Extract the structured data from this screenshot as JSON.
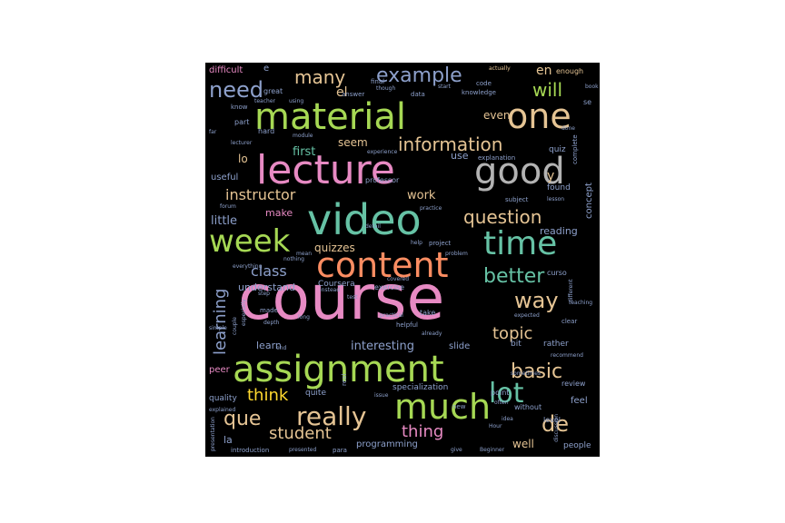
{
  "word_cloud": {
    "background": "#000000",
    "words": [
      {
        "text": "course",
        "color": "#e78ac3"
      },
      {
        "text": "video",
        "color": "#66c2a5"
      },
      {
        "text": "lecture",
        "color": "#e78ac3"
      },
      {
        "text": "material",
        "color": "#a6d854"
      },
      {
        "text": "assignment",
        "color": "#a6d854"
      },
      {
        "text": "content",
        "color": "#fc8d62"
      },
      {
        "text": "much",
        "color": "#a6d854"
      },
      {
        "text": "one",
        "color": "#e5c494"
      },
      {
        "text": "good",
        "color": "#b3b3b3"
      },
      {
        "text": "time",
        "color": "#66c2a5"
      },
      {
        "text": "week",
        "color": "#a6d854"
      },
      {
        "text": "really",
        "color": "#e5c494"
      },
      {
        "text": "information",
        "color": "#e5c494"
      },
      {
        "text": "lot",
        "color": "#66c2a5"
      },
      {
        "text": "example",
        "color": "#8da0cb"
      },
      {
        "text": "question",
        "color": "#e5c494"
      },
      {
        "text": "better",
        "color": "#66c2a5"
      },
      {
        "text": "basic",
        "color": "#e5c494"
      },
      {
        "text": "way",
        "color": "#e5c494"
      },
      {
        "text": "need",
        "color": "#8da0cb"
      },
      {
        "text": "many",
        "color": "#e5c494"
      },
      {
        "text": "will",
        "color": "#a6d854"
      },
      {
        "text": "instructor",
        "color": "#e5c494"
      },
      {
        "text": "que",
        "color": "#e5c494"
      },
      {
        "text": "de",
        "color": "#e5c494"
      },
      {
        "text": "think",
        "color": "#ffd92f"
      },
      {
        "text": "thing",
        "color": "#e78ac3"
      },
      {
        "text": "topic",
        "color": "#e5c494"
      },
      {
        "text": "class",
        "color": "#8da0cb"
      },
      {
        "text": "student",
        "color": "#e5c494"
      },
      {
        "text": "learning",
        "color": "#8da0cb"
      },
      {
        "text": "quizzes",
        "color": "#e5c494"
      },
      {
        "text": "interesting",
        "color": "#8da0cb"
      },
      {
        "text": "understand",
        "color": "#8da0cb"
      },
      {
        "text": "Coursera",
        "color": "#8da0cb"
      },
      {
        "text": "little",
        "color": "#8da0cb"
      },
      {
        "text": "make",
        "color": "#e78ac3"
      },
      {
        "text": "work",
        "color": "#e5c494"
      },
      {
        "text": "first",
        "color": "#66c2a5"
      },
      {
        "text": "seem",
        "color": "#e5c494"
      },
      {
        "text": "use",
        "color": "#8da0cb"
      },
      {
        "text": "learn",
        "color": "#8da0cb"
      },
      {
        "text": "programming",
        "color": "#8da0cb"
      },
      {
        "text": "well",
        "color": "#e5c494"
      },
      {
        "text": "reading",
        "color": "#8da0cb"
      },
      {
        "text": "concept",
        "color": "#8da0cb"
      },
      {
        "text": "el",
        "color": "#e5c494"
      },
      {
        "text": "en",
        "color": "#e5c494"
      },
      {
        "text": "even",
        "color": "#e5c494"
      },
      {
        "text": "lo",
        "color": "#e5c494"
      },
      {
        "text": "quiz",
        "color": "#8da0cb"
      },
      {
        "text": "slide",
        "color": "#8da0cb"
      },
      {
        "text": "specialization",
        "color": "#8da0cb"
      },
      {
        "text": "bit",
        "color": "#8da0cb"
      },
      {
        "text": "rather",
        "color": "#8da0cb"
      },
      {
        "text": "found",
        "color": "#8da0cb"
      },
      {
        "text": "professor",
        "color": "#8da0cb"
      },
      {
        "text": "useful",
        "color": "#8da0cb"
      },
      {
        "text": "feel",
        "color": "#8da0cb"
      },
      {
        "text": "people",
        "color": "#8da0cb"
      },
      {
        "text": "level",
        "color": "#8da0cb"
      },
      {
        "text": "review",
        "color": "#8da0cb"
      },
      {
        "text": "quality",
        "color": "#8da0cb"
      },
      {
        "text": "quite",
        "color": "#8da0cb"
      },
      {
        "text": "la",
        "color": "#8da0cb"
      },
      {
        "text": "peer",
        "color": "#e78ac3"
      },
      {
        "text": "difficult",
        "color": "#e78ac3"
      },
      {
        "text": "enough",
        "color": "#e5c494"
      },
      {
        "text": "code",
        "color": "#8da0cb"
      },
      {
        "text": "knowledge",
        "color": "#8da0cb"
      },
      {
        "text": "answer",
        "color": "#8da0cb"
      },
      {
        "text": "data",
        "color": "#8da0cb"
      },
      {
        "text": "final",
        "color": "#8da0cb"
      },
      {
        "text": "start",
        "color": "#8da0cb"
      },
      {
        "text": "great",
        "color": "#8da0cb"
      },
      {
        "text": "part",
        "color": "#8da0cb"
      },
      {
        "text": "know",
        "color": "#8da0cb"
      },
      {
        "text": "hard",
        "color": "#8da0cb"
      },
      {
        "text": "explanation",
        "color": "#8da0cb"
      },
      {
        "text": "subject",
        "color": "#8da0cb"
      },
      {
        "text": "exercise",
        "color": "#8da0cb"
      },
      {
        "text": "project",
        "color": "#8da0cb"
      },
      {
        "text": "problem",
        "color": "#8da0cb"
      },
      {
        "text": "point",
        "color": "#8da0cb"
      },
      {
        "text": "made",
        "color": "#8da0cb"
      },
      {
        "text": "take",
        "color": "#8da0cb"
      },
      {
        "text": "helpful",
        "color": "#8da0cb"
      },
      {
        "text": "clear",
        "color": "#8da0cb"
      },
      {
        "text": "without",
        "color": "#8da0cb"
      },
      {
        "text": "issue",
        "color": "#8da0cb"
      },
      {
        "text": "new",
        "color": "#8da0cb"
      },
      {
        "text": "explained",
        "color": "#8da0cb"
      },
      {
        "text": "introduction",
        "color": "#8da0cb"
      },
      {
        "text": "presented",
        "color": "#8da0cb"
      },
      {
        "text": "para",
        "color": "#8da0cb"
      },
      {
        "text": "give",
        "color": "#8da0cb"
      },
      {
        "text": "Beginner",
        "color": "#8da0cb"
      },
      {
        "text": "lecturer",
        "color": "#8da0cb"
      },
      {
        "text": "detail",
        "color": "#8da0cb"
      },
      {
        "text": "practice",
        "color": "#8da0cb"
      },
      {
        "text": "help",
        "color": "#8da0cb"
      },
      {
        "text": "covered",
        "color": "#8da0cb"
      },
      {
        "text": "real",
        "color": "#8da0cb"
      },
      {
        "text": "complete",
        "color": "#8da0cb"
      },
      {
        "text": "expected",
        "color": "#8da0cb"
      },
      {
        "text": "recommend",
        "color": "#8da0cb"
      },
      {
        "text": "discussion",
        "color": "#8da0cb"
      },
      {
        "text": "already",
        "color": "#8da0cb"
      },
      {
        "text": "mean",
        "color": "#8da0cb"
      },
      {
        "text": "Hour",
        "color": "#8da0cb"
      },
      {
        "text": "idea",
        "color": "#8da0cb"
      },
      {
        "text": "often",
        "color": "#8da0cb"
      },
      {
        "text": "sometimes",
        "color": "#8da0cb"
      },
      {
        "text": "teaching",
        "color": "#8da0cb"
      },
      {
        "text": "different",
        "color": "#8da0cb"
      },
      {
        "text": "curso",
        "color": "#8da0cb"
      },
      {
        "text": "actually",
        "color": "#e5c494"
      },
      {
        "text": "book",
        "color": "#8da0cb"
      },
      {
        "text": "using",
        "color": "#8da0cb"
      },
      {
        "text": "teacher",
        "color": "#8da0cb"
      },
      {
        "text": "though",
        "color": "#8da0cb"
      },
      {
        "text": "experience",
        "color": "#8da0cb"
      },
      {
        "text": "module",
        "color": "#8da0cb"
      },
      {
        "text": "forum",
        "color": "#8da0cb"
      },
      {
        "text": "lesson",
        "color": "#8da0cb"
      },
      {
        "text": "practical",
        "color": "#8da0cb"
      },
      {
        "text": "depth",
        "color": "#8da0cb"
      },
      {
        "text": "long",
        "color": "#8da0cb"
      },
      {
        "text": "test",
        "color": "#8da0cb"
      },
      {
        "text": "nothing",
        "color": "#8da0cb"
      },
      {
        "text": "instead",
        "color": "#8da0cb"
      },
      {
        "text": "everything",
        "color": "#8da0cb"
      },
      {
        "text": "end",
        "color": "#8da0cb"
      },
      {
        "text": "presentation",
        "color": "#8da0cb"
      },
      {
        "text": "couple",
        "color": "#8da0cb"
      },
      {
        "text": "especially",
        "color": "#8da0cb"
      },
      {
        "text": "simple",
        "color": "#8da0cb"
      },
      {
        "text": "e",
        "color": "#8da0cb"
      },
      {
        "text": "se",
        "color": "#8da0cb"
      },
      {
        "text": "y",
        "color": "#e5c494"
      },
      {
        "text": "far",
        "color": "#8da0cb"
      },
      {
        "text": "step",
        "color": "#8da0cb"
      },
      {
        "text": "done",
        "color": "#8da0cb"
      }
    ]
  }
}
